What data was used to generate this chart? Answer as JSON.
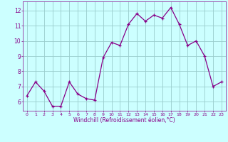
{
  "x": [
    0,
    1,
    2,
    3,
    4,
    5,
    6,
    7,
    8,
    9,
    10,
    11,
    12,
    13,
    14,
    15,
    16,
    17,
    18,
    19,
    20,
    21,
    22,
    23
  ],
  "y": [
    6.4,
    7.3,
    6.7,
    5.7,
    5.7,
    7.3,
    6.5,
    6.2,
    6.1,
    8.9,
    9.9,
    9.7,
    11.1,
    11.8,
    11.3,
    11.7,
    11.5,
    12.2,
    11.1,
    9.7,
    10.0,
    9.0,
    7.0,
    7.3
  ],
  "line_color": "#880088",
  "marker_color": "#880088",
  "bg_color": "#ccffff",
  "grid_color": "#99cccc",
  "axis_label_color": "#880088",
  "tick_color": "#880088",
  "xlabel": "Windchill (Refroidissement éolien,°C)",
  "xlim": [
    -0.5,
    23.5
  ],
  "ylim": [
    5.4,
    12.6
  ],
  "yticks": [
    6,
    7,
    8,
    9,
    10,
    11,
    12
  ],
  "xticks": [
    0,
    1,
    2,
    3,
    4,
    5,
    6,
    7,
    8,
    9,
    10,
    11,
    12,
    13,
    14,
    15,
    16,
    17,
    18,
    19,
    20,
    21,
    22,
    23
  ]
}
